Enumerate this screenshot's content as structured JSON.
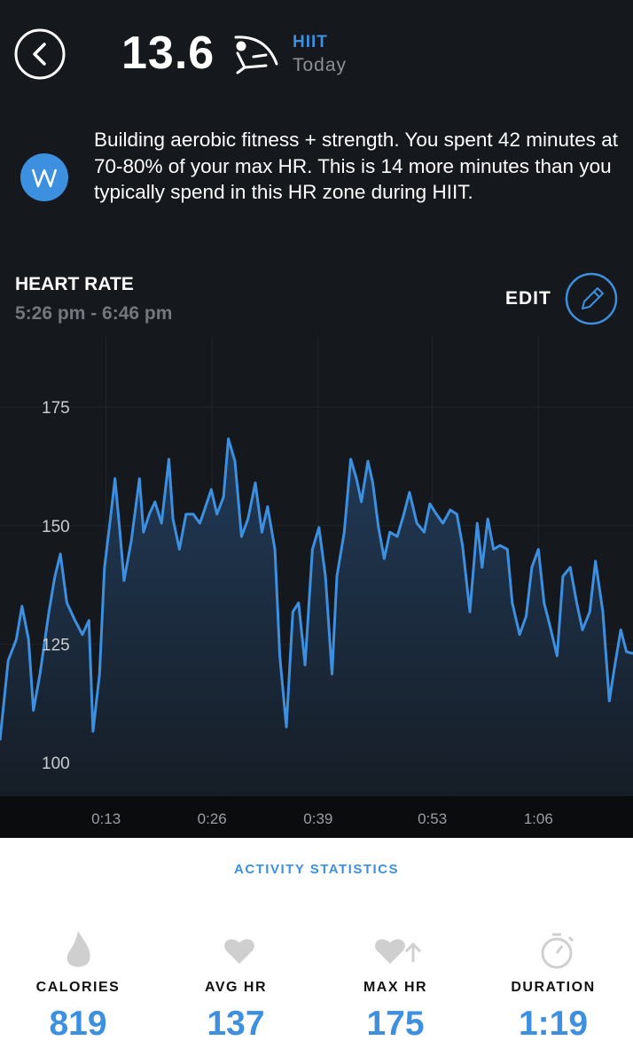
{
  "header": {
    "score": "13.6",
    "activity": "HIIT",
    "day": "Today"
  },
  "insight": {
    "text": "Building aerobic fitness + strength. You spent 42 minutes at 70-80% of your max HR. This is 14 more minutes than you typically spend in this HR zone during HIIT."
  },
  "heart_rate": {
    "title": "HEART RATE",
    "time_range": "5:26 pm - 6:46 pm",
    "edit": "EDIT"
  },
  "chart_data": {
    "type": "line",
    "color": "#3d8fe0",
    "grid": true,
    "x": [
      0,
      1.0,
      2.0,
      2.7,
      3.5,
      4.1,
      4.9,
      6.0,
      6.7,
      7.4,
      8.2,
      9.2,
      10.1,
      10.9,
      11.4,
      12.2,
      12.8,
      13.6,
      14.1,
      14.7,
      15.2,
      16.1,
      17.1,
      17.6,
      18.3,
      19.0,
      19.8,
      20.7,
      21.2,
      22.0,
      22.8,
      23.7,
      24.5,
      25.2,
      25.9,
      26.6,
      27.4,
      28.0,
      28.8,
      29.6,
      30.4,
      31.3,
      32.1,
      32.8,
      33.7,
      34.3,
      35.1,
      35.9,
      36.6,
      37.4,
      38.3,
      39.1,
      39.9,
      40.7,
      41.3,
      42.2,
      43.0,
      43.7,
      44.3,
      45.1,
      45.7,
      46.4,
      47.1,
      47.8,
      48.7,
      49.5,
      50.2,
      51.1,
      52.0,
      52.7,
      53.5,
      54.3,
      55.2,
      56.0,
      56.7,
      57.6,
      58.5,
      59.1,
      59.8,
      60.5,
      61.3,
      62.2,
      62.8,
      63.7,
      64.5,
      65.2,
      66.0,
      66.7,
      67.4,
      68.3,
      69.0,
      69.9,
      70.7,
      71.4,
      72.3,
      73.0,
      73.9,
      74.7,
      75.3,
      76.1,
      76.8,
      77.6
    ],
    "values": [
      104.7,
      121.5,
      126,
      133,
      126,
      111,
      118.7,
      131.8,
      139,
      144,
      133.7,
      130,
      127,
      130,
      106.6,
      118.7,
      141,
      152.4,
      159.9,
      148.6,
      138.4,
      146.8,
      159.9,
      148.6,
      152.4,
      155,
      150.5,
      164,
      151.4,
      145,
      152.4,
      152.4,
      150.5,
      154,
      157.6,
      152.4,
      156,
      168.3,
      163.6,
      147.7,
      151.4,
      159,
      148.6,
      154,
      145,
      122.5,
      107.5,
      131.8,
      133.7,
      120.6,
      145,
      149.6,
      139.3,
      118.7,
      139.3,
      148.6,
      164,
      159.9,
      155,
      163.6,
      159,
      149.6,
      143,
      148.6,
      147.7,
      152.4,
      157,
      150.5,
      148.6,
      154.6,
      152.4,
      150.5,
      153.3,
      152.4,
      145.8,
      131.8,
      150.5,
      141.2,
      151.4,
      145,
      145.8,
      145,
      133.7,
      127,
      130.9,
      141.2,
      145,
      133.7,
      129,
      122.5,
      139.3,
      141.2,
      133.7,
      128,
      131.8,
      142.5,
      131.8,
      113,
      119.7,
      128,
      123.4,
      123
    ],
    "xlim": [
      0,
      77.6
    ],
    "ylim": [
      92.9,
      189.8
    ],
    "xticks": [
      {
        "value": 13,
        "label": "0:13"
      },
      {
        "value": 26,
        "label": "0:26"
      },
      {
        "value": 39,
        "label": "0:39"
      },
      {
        "value": 53,
        "label": "0:53"
      },
      {
        "value": 66,
        "label": "1:06"
      }
    ],
    "yticks": [
      100,
      125,
      150,
      175
    ]
  },
  "stats": {
    "title": "ACTIVITY STATISTICS",
    "items": [
      {
        "label": "CALORIES",
        "value": "819"
      },
      {
        "label": "AVG HR",
        "value": "137"
      },
      {
        "label": "MAX HR",
        "value": "175"
      },
      {
        "label": "DURATION",
        "value": "1:19"
      }
    ]
  }
}
